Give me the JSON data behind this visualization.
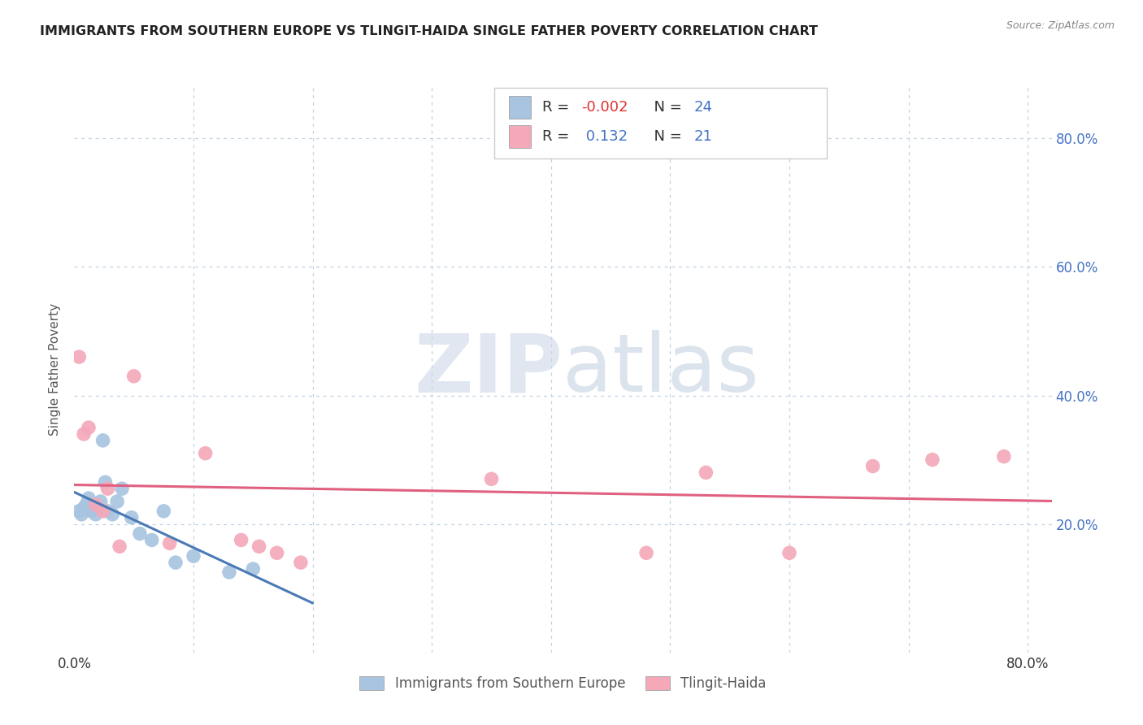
{
  "title": "IMMIGRANTS FROM SOUTHERN EUROPE VS TLINGIT-HAIDA SINGLE FATHER POVERTY CORRELATION CHART",
  "source_text": "Source: ZipAtlas.com",
  "ylabel": "Single Father Poverty",
  "xlim": [
    0.0,
    0.82
  ],
  "ylim": [
    0.0,
    0.88
  ],
  "blue_label": "Immigrants from Southern Europe",
  "pink_label": "Tlingit-Haida",
  "R_blue": -0.002,
  "N_blue": 24,
  "R_pink": 0.132,
  "N_pink": 21,
  "blue_color": "#a8c4e0",
  "pink_color": "#f4a8b8",
  "blue_line_color": "#4a7ab5",
  "pink_line_color": "#e06080",
  "legend_text_color": "#4472c4",
  "legend_neg_color": "#e03030",
  "watermark_color": "#cdd8e8",
  "blue_dots_x": [
    0.004,
    0.006,
    0.008,
    0.01,
    0.012,
    0.014,
    0.016,
    0.018,
    0.02,
    0.022,
    0.024,
    0.026,
    0.028,
    0.032,
    0.036,
    0.04,
    0.048,
    0.055,
    0.065,
    0.075,
    0.085,
    0.1,
    0.13,
    0.15
  ],
  "blue_dots_y": [
    0.22,
    0.215,
    0.225,
    0.23,
    0.24,
    0.22,
    0.225,
    0.215,
    0.225,
    0.235,
    0.33,
    0.265,
    0.22,
    0.215,
    0.235,
    0.255,
    0.21,
    0.185,
    0.175,
    0.22,
    0.14,
    0.15,
    0.125,
    0.13
  ],
  "pink_dots_x": [
    0.004,
    0.008,
    0.012,
    0.018,
    0.024,
    0.028,
    0.038,
    0.05,
    0.08,
    0.11,
    0.14,
    0.155,
    0.17,
    0.19,
    0.35,
    0.48,
    0.53,
    0.6,
    0.67,
    0.72,
    0.78
  ],
  "pink_dots_y": [
    0.46,
    0.34,
    0.35,
    0.23,
    0.22,
    0.255,
    0.165,
    0.43,
    0.17,
    0.31,
    0.175,
    0.165,
    0.155,
    0.14,
    0.27,
    0.155,
    0.28,
    0.155,
    0.29,
    0.3,
    0.305
  ],
  "blue_line_x": [
    0.0,
    0.2
  ],
  "pink_line_x": [
    0.0,
    0.82
  ]
}
